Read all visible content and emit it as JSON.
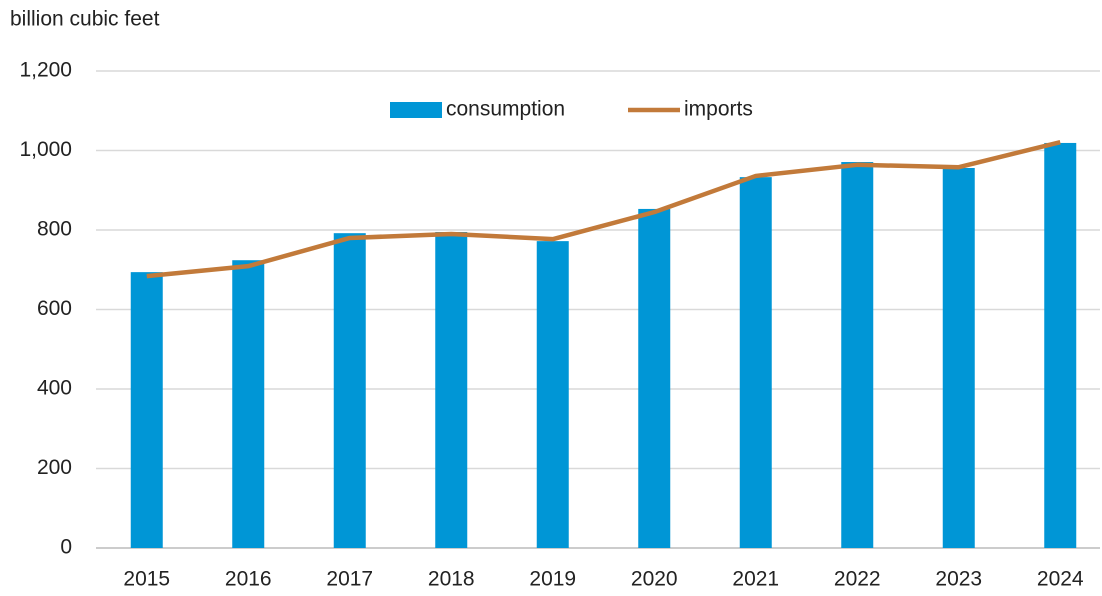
{
  "chart_data": {
    "type": "bar",
    "y_axis_label": "billion cubic feet",
    "categories": [
      "2015",
      "2016",
      "2017",
      "2018",
      "2019",
      "2020",
      "2021",
      "2022",
      "2023",
      "2024"
    ],
    "series": [
      {
        "name": "consumption",
        "type": "bar",
        "color": "#0096d6",
        "values": [
          694,
          724,
          792,
          795,
          772,
          853,
          933,
          971,
          956,
          1019
        ]
      },
      {
        "name": "imports",
        "type": "line",
        "color": "#c27a3a",
        "values": [
          684,
          709,
          780,
          790,
          777,
          845,
          936,
          964,
          958,
          1021
        ]
      }
    ],
    "ylim": [
      0,
      1200
    ],
    "yticks": [
      0,
      200,
      400,
      600,
      800,
      {
        "value": 1000,
        "label": "1,000"
      },
      {
        "value": 1200,
        "label": "1,200"
      }
    ],
    "grid": true,
    "legend": "top"
  }
}
